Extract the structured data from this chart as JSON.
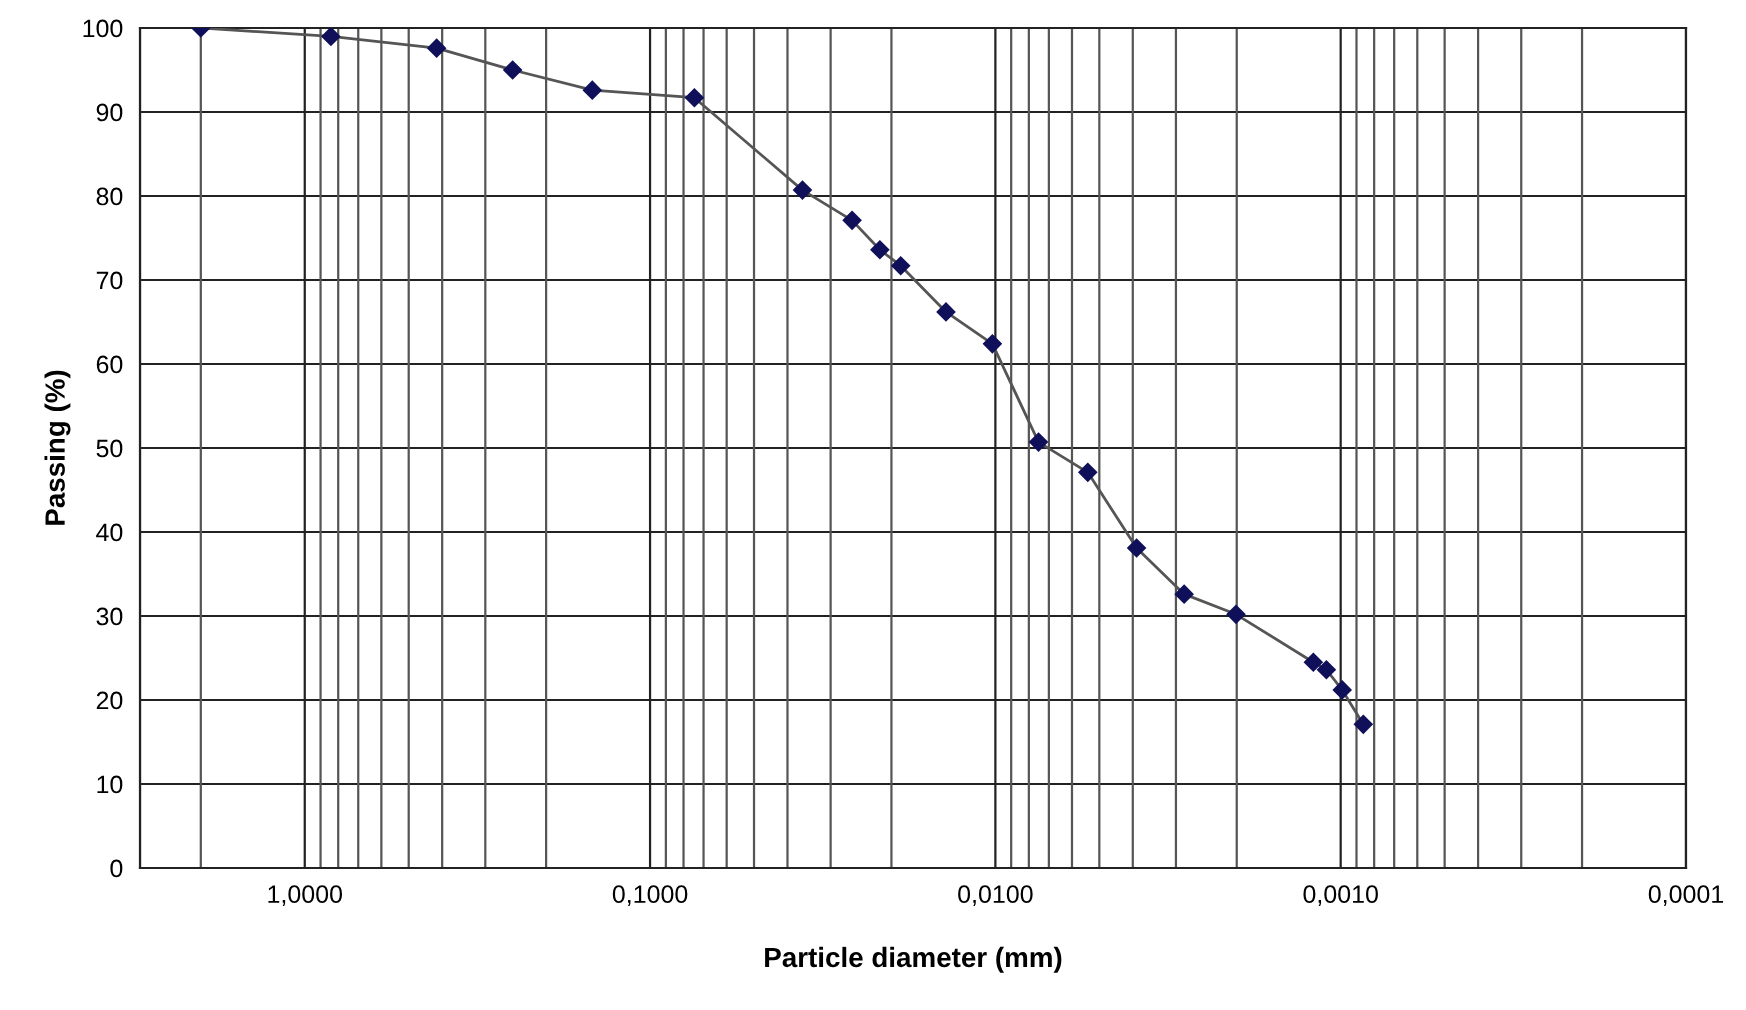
{
  "chart_data": {
    "type": "line",
    "xlabel": "Particle diameter (mm)",
    "ylabel": "Passing (%)",
    "log": "x",
    "xlim": [
      3,
      0.0001
    ],
    "xticks": [
      {
        "value": 1,
        "label": "1,0000"
      },
      {
        "value": 0.1,
        "label": "0,1000"
      },
      {
        "value": 0.01,
        "label": "0,0100"
      },
      {
        "value": 0.001,
        "label": "0,0010"
      },
      {
        "value": 0.0001,
        "label": "0,0001"
      }
    ],
    "ylim": [
      0,
      100
    ],
    "yticks": [
      0,
      10,
      20,
      30,
      40,
      50,
      60,
      70,
      80,
      90,
      100
    ],
    "grid": true,
    "marker": "diamond",
    "line_style": "solid",
    "x": [
      2.0,
      0.84,
      0.415,
      0.25,
      0.147,
      0.0744,
      0.0362,
      0.026,
      0.0216,
      0.0188,
      0.0139,
      0.0102,
      0.0075,
      0.0054,
      0.0039,
      0.00284,
      0.00201,
      0.0012,
      0.0011,
      0.00099,
      0.00086
    ],
    "series": [
      {
        "color": "#10105a",
        "values": [
          100,
          99,
          97.6,
          95,
          92.6,
          91.7,
          80.7,
          77.1,
          73.6,
          71.7,
          66.2,
          62.4,
          50.7,
          47.1,
          38.1,
          32.6,
          30.2,
          24.5,
          23.6,
          21.2,
          17.1
        ]
      }
    ]
  }
}
